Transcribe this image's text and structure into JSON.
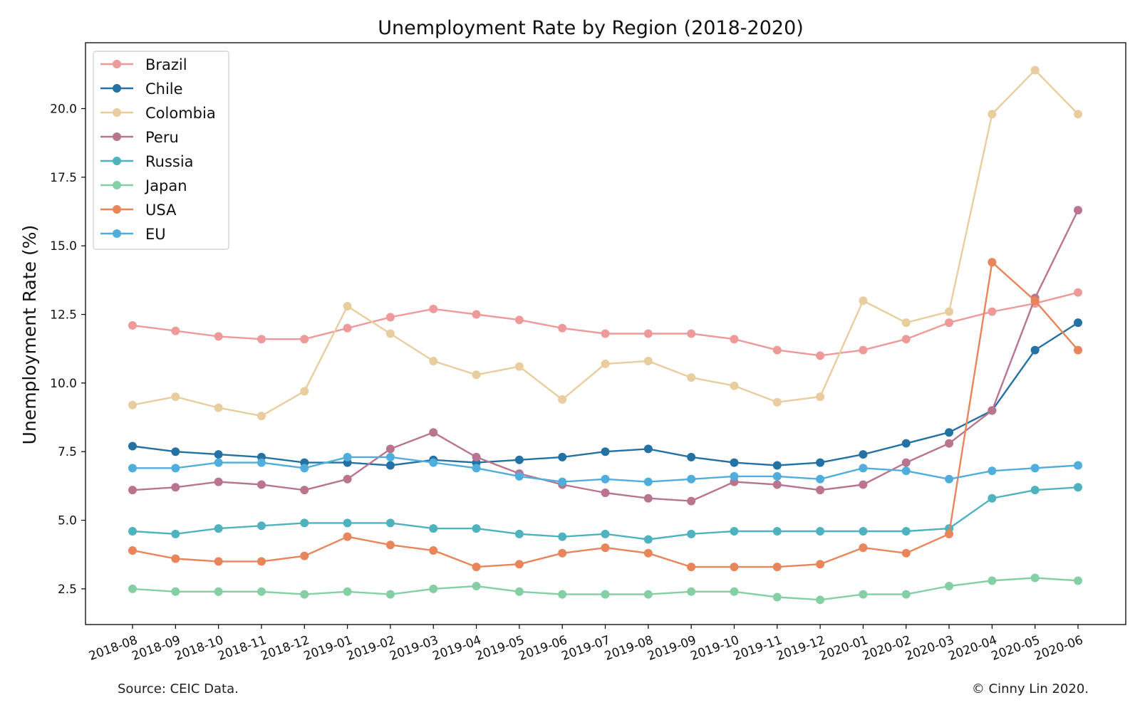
{
  "chart_data": {
    "type": "line",
    "title": "Unemployment Rate by Region (2018-2020)",
    "xlabel": "",
    "ylabel": "Unemployment Rate (%)",
    "categories": [
      "2018-08",
      "2018-09",
      "2018-10",
      "2018-11",
      "2018-12",
      "2019-01",
      "2019-02",
      "2019-03",
      "2019-04",
      "2019-05",
      "2019-06",
      "2019-07",
      "2019-08",
      "2019-09",
      "2019-10",
      "2019-11",
      "2019-12",
      "2020-01",
      "2020-02",
      "2020-03",
      "2020-04",
      "2020-05",
      "2020-06"
    ],
    "ylim": [
      1.2,
      22.4
    ],
    "yticks": [
      2.5,
      5.0,
      7.5,
      10.0,
      12.5,
      15.0,
      17.5,
      20.0
    ],
    "ytick_labels": [
      "2.5",
      "5.0",
      "7.5",
      "10.0",
      "12.5",
      "15.0",
      "17.5",
      "20.0"
    ],
    "grid": false,
    "legend_position": "top-left",
    "series": [
      {
        "name": "Brazil",
        "color": "#EE9A9A",
        "values": [
          12.1,
          11.9,
          11.7,
          11.6,
          11.6,
          12.0,
          12.4,
          12.7,
          12.5,
          12.3,
          12.0,
          11.8,
          11.8,
          11.8,
          11.6,
          11.2,
          11.0,
          11.2,
          11.6,
          12.2,
          12.6,
          12.9,
          13.3
        ]
      },
      {
        "name": "Chile",
        "color": "#2471A3",
        "values": [
          7.7,
          7.5,
          7.4,
          7.3,
          7.1,
          7.1,
          7.0,
          7.2,
          7.1,
          7.2,
          7.3,
          7.5,
          7.6,
          7.3,
          7.1,
          7.0,
          7.1,
          7.4,
          7.8,
          8.2,
          9.0,
          11.2,
          12.2
        ]
      },
      {
        "name": "Colombia",
        "color": "#E8CD9E",
        "values": [
          9.2,
          9.5,
          9.1,
          8.8,
          9.7,
          12.8,
          11.8,
          10.8,
          10.3,
          10.6,
          9.4,
          10.7,
          10.8,
          10.2,
          9.9,
          9.3,
          9.5,
          13.0,
          12.2,
          12.6,
          19.8,
          21.4,
          19.8
        ]
      },
      {
        "name": "Peru",
        "color": "#B9748F",
        "values": [
          6.1,
          6.2,
          6.4,
          6.3,
          6.1,
          6.5,
          7.6,
          8.2,
          7.3,
          6.7,
          6.3,
          6.0,
          5.8,
          5.7,
          6.4,
          6.3,
          6.1,
          6.3,
          7.1,
          7.8,
          9.0,
          13.1,
          16.3
        ]
      },
      {
        "name": "Russia",
        "color": "#4EB3BE",
        "values": [
          4.6,
          4.5,
          4.7,
          4.8,
          4.9,
          4.9,
          4.9,
          4.7,
          4.7,
          4.5,
          4.4,
          4.5,
          4.3,
          4.5,
          4.6,
          4.6,
          4.6,
          4.6,
          4.6,
          4.7,
          5.8,
          6.1,
          6.2
        ]
      },
      {
        "name": "Japan",
        "color": "#85CFA5",
        "values": [
          2.5,
          2.4,
          2.4,
          2.4,
          2.3,
          2.4,
          2.3,
          2.5,
          2.6,
          2.4,
          2.3,
          2.3,
          2.3,
          2.4,
          2.4,
          2.2,
          2.1,
          2.3,
          2.3,
          2.6,
          2.8,
          2.9,
          2.8
        ]
      },
      {
        "name": "USA",
        "color": "#E8855A",
        "values": [
          3.9,
          3.6,
          3.5,
          3.5,
          3.7,
          4.4,
          4.1,
          3.9,
          3.3,
          3.4,
          3.8,
          4.0,
          3.8,
          3.3,
          3.3,
          3.3,
          3.4,
          4.0,
          3.8,
          4.5,
          14.4,
          13.0,
          11.2
        ]
      },
      {
        "name": "EU",
        "color": "#4FAEDB",
        "values": [
          6.9,
          6.9,
          7.1,
          7.1,
          6.9,
          7.3,
          7.3,
          7.1,
          6.9,
          6.6,
          6.4,
          6.5,
          6.4,
          6.5,
          6.6,
          6.6,
          6.5,
          6.9,
          6.8,
          6.5,
          6.8,
          6.9,
          7.0
        ]
      }
    ]
  },
  "footer": {
    "source": "Source: CEIC Data.",
    "copyright": "© Cinny Lin 2020."
  }
}
